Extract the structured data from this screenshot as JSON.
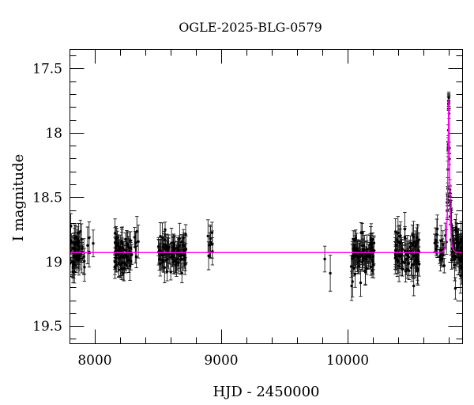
{
  "chart_data": {
    "type": "scatter",
    "title": "OGLE-2025-BLG-0579",
    "xlabel": "HJD - 2450000",
    "ylabel": "I magnitude",
    "xlim": [
      7800,
      10912
    ],
    "ylim": [
      17.35,
      19.64
    ],
    "y_axis_direction": "inverted-magnitude-axis",
    "grid": false,
    "x_ticks": {
      "major": [
        8000,
        9000,
        10000
      ],
      "labels": [
        "8000",
        "9000",
        "10000"
      ],
      "minor_step": 200
    },
    "y_ticks": {
      "major": [
        17.5,
        18,
        18.5,
        19,
        19.5
      ],
      "labels": [
        "17.5",
        "18",
        "18.5",
        "19",
        "19.5"
      ],
      "minor_step": 0.1
    },
    "colors": {
      "points": "#000000",
      "errorbars": "#1a1a1a",
      "model": "#ff00f0",
      "frame": "#000000",
      "background": "#ffffff"
    },
    "model": {
      "kind": "paczynski_microlensing",
      "t0": 10800,
      "tE": 13,
      "u0": 0.35,
      "baseline_mag": 18.93,
      "peak_mag": 17.74
    },
    "marker": {
      "radius": 1.7,
      "errorbar_cap_halfwidth": 2.2
    },
    "seed": 11,
    "seasons": [
      {
        "t_start": 7795,
        "t_end": 7902,
        "n": 60,
        "mean": 18.92,
        "sigma": 0.07,
        "err_min": 0.05,
        "err_max": 0.12
      },
      {
        "t_start": 7906,
        "t_end": 7992,
        "n": 7,
        "mean": 18.93,
        "sigma": 0.07,
        "err_min": 0.08,
        "err_max": 0.16
      },
      {
        "t_start": 8158,
        "t_end": 8298,
        "n": 72,
        "mean": 18.92,
        "sigma": 0.07,
        "err_min": 0.05,
        "err_max": 0.12
      },
      {
        "t_start": 8302,
        "t_end": 8362,
        "n": 6,
        "mean": 18.9,
        "sigma": 0.06,
        "err_min": 0.07,
        "err_max": 0.14
      },
      {
        "t_start": 8500,
        "t_end": 8722,
        "n": 85,
        "mean": 18.93,
        "sigma": 0.07,
        "err_min": 0.05,
        "err_max": 0.12
      },
      {
        "t_start": 8888,
        "t_end": 8940,
        "n": 8,
        "mean": 18.88,
        "sigma": 0.11,
        "err_min": 0.07,
        "err_max": 0.13
      },
      {
        "t_start": 10028,
        "t_end": 10210,
        "n": 85,
        "mean": 18.93,
        "sigma": 0.075,
        "err_min": 0.05,
        "err_max": 0.12
      },
      {
        "t_start": 10372,
        "t_end": 10566,
        "n": 85,
        "mean": 18.95,
        "sigma": 0.08,
        "err_min": 0.05,
        "err_max": 0.13
      },
      {
        "t_start": 10688,
        "t_end": 10783,
        "n": 20,
        "sigma": 0.07,
        "err_min": 0.05,
        "err_max": 0.12,
        "follow_model": true
      },
      {
        "t_start": 10786,
        "t_end": 10814,
        "n": 26,
        "sigma": 0.035,
        "err_min": 0.05,
        "err_max": 0.11,
        "follow_model": true
      },
      {
        "t_start": 10816,
        "t_end": 10908,
        "n": 58,
        "sigma": 0.09,
        "err_min": 0.06,
        "err_max": 0.14,
        "follow_model": true
      }
    ],
    "special_points": [
      {
        "t": 9819,
        "mag": 18.98,
        "err": 0.1
      },
      {
        "t": 9863,
        "mag": 19.09,
        "err": 0.14
      },
      {
        "t": 10706,
        "mag": 18.79,
        "err": 0.12
      },
      {
        "t": 10800.4,
        "mag": 17.75,
        "err": 0.045
      }
    ]
  }
}
